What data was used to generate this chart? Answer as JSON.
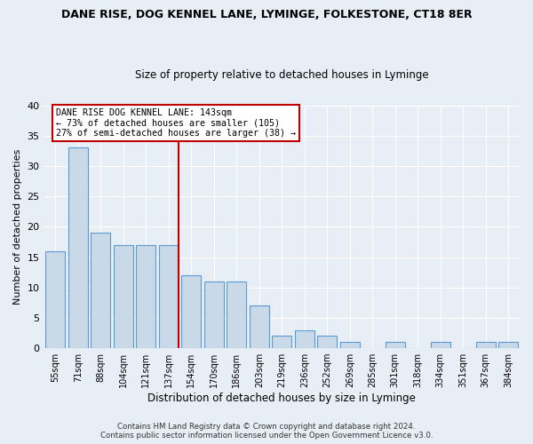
{
  "title": "DANE RISE, DOG KENNEL LANE, LYMINGE, FOLKESTONE, CT18 8ER",
  "subtitle": "Size of property relative to detached houses in Lyminge",
  "xlabel": "Distribution of detached houses by size in Lyminge",
  "ylabel": "Number of detached properties",
  "categories": [
    "55sqm",
    "71sqm",
    "88sqm",
    "104sqm",
    "121sqm",
    "137sqm",
    "154sqm",
    "170sqm",
    "186sqm",
    "203sqm",
    "219sqm",
    "236sqm",
    "252sqm",
    "269sqm",
    "285sqm",
    "301sqm",
    "318sqm",
    "334sqm",
    "351sqm",
    "367sqm",
    "384sqm"
  ],
  "values": [
    16,
    33,
    19,
    17,
    17,
    17,
    12,
    11,
    11,
    7,
    2,
    3,
    2,
    1,
    0,
    1,
    0,
    1,
    0,
    1,
    1
  ],
  "bar_color": "#c9d9e8",
  "bar_edge_color": "#5b9bd5",
  "highlight_bar_index": 5,
  "highlight_color": "#c00000",
  "ylim": [
    0,
    40
  ],
  "yticks": [
    0,
    5,
    10,
    15,
    20,
    25,
    30,
    35,
    40
  ],
  "annotation_title": "DANE RISE DOG KENNEL LANE: 143sqm",
  "annotation_line1": "← 73% of detached houses are smaller (105)",
  "annotation_line2": "27% of semi-detached houses are larger (38) →",
  "footer_line1": "Contains HM Land Registry data © Crown copyright and database right 2024.",
  "footer_line2": "Contains public sector information licensed under the Open Government Licence v3.0.",
  "bg_color": "#e8eef5",
  "plot_bg_color": "#e8eef5",
  "title_fontsize": 9,
  "subtitle_fontsize": 8.5
}
